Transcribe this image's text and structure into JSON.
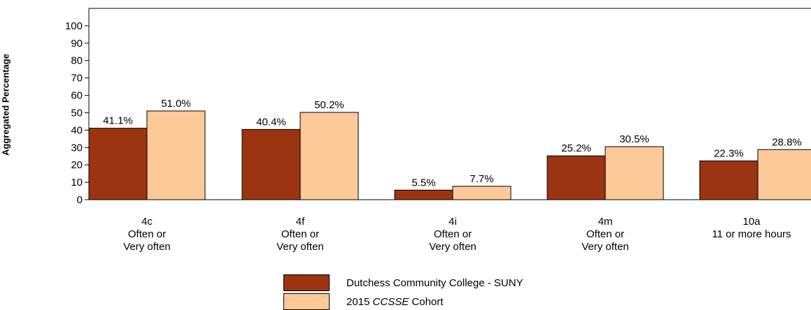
{
  "chart_data": {
    "type": "bar",
    "ylabel": "Aggregated Percentage",
    "ylim": [
      0,
      110
    ],
    "yticks": [
      "0",
      "10",
      "20",
      "30",
      "40",
      "50",
      "60",
      "70",
      "80",
      "90",
      "100"
    ],
    "categories": [
      {
        "code": "4c",
        "line2": "Often or",
        "line3": "Very often"
      },
      {
        "code": "4f",
        "line2": "Often or",
        "line3": "Very often"
      },
      {
        "code": "4i",
        "line2": "Often or",
        "line3": "Very often"
      },
      {
        "code": "4m",
        "line2": "Often or",
        "line3": "Very often"
      },
      {
        "code": "10a",
        "line2": "11 or more hours",
        "line3": ""
      }
    ],
    "series": [
      {
        "name": "Dutchess Community College - SUNY",
        "color": "#9b3410",
        "values": [
          41.1,
          40.4,
          5.5,
          25.2,
          22.3
        ],
        "labels": [
          "41.1%",
          "40.4%",
          "5.5%",
          "25.2%",
          "22.3%"
        ]
      },
      {
        "name": "2015 CCSSE Cohort",
        "color": "#fdc999",
        "values": [
          51.0,
          50.2,
          7.7,
          30.5,
          28.8
        ],
        "labels": [
          "51.0%",
          "50.2%",
          "7.7%",
          "30.5%",
          "28.8%"
        ]
      }
    ],
    "legend": {
      "item1": "Dutchess Community College - SUNY",
      "item2_prefix": "2015 ",
      "item2_italic": "CCSSE",
      "item2_suffix": " Cohort"
    }
  }
}
